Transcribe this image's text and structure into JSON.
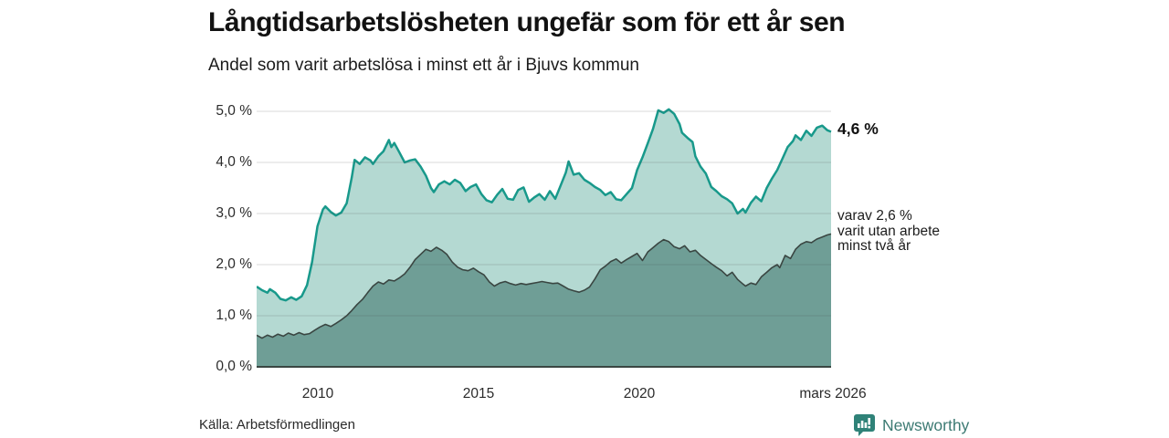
{
  "header": {
    "title": "Långtidsarbetslösheten ungefär som för ett år sen",
    "subtitle": "Andel som varit arbetslösa i minst ett år i Bjuvs kommun"
  },
  "chart_data": {
    "type": "area",
    "title": "Långtidsarbetslösheten ungefär som för ett år sen",
    "subtitle": "Andel som varit arbetslösa i minst ett år i Bjuvs kommun",
    "unit": "%",
    "x_domain": [
      2008.08,
      2026.2
    ],
    "ylim": [
      0,
      5
    ],
    "grid": true,
    "legend_position": "none",
    "y_ticks": [
      "5,0 %",
      "4,0 %",
      "3,0 %",
      "2,0 %",
      "1,0 %",
      "0,0 %"
    ],
    "y_tick_values": [
      5,
      4,
      3,
      2,
      1,
      0
    ],
    "x_tick_labels": [
      "2010",
      "2015",
      "2020",
      "mars 2026"
    ],
    "x_tick_values": [
      2010,
      2015,
      2020,
      2026.2
    ],
    "end_labels": {
      "primary": "4,6 %",
      "secondary_lines": [
        "varav 2,6 %",
        "varit utan arbete",
        "minst två år"
      ]
    },
    "series": [
      {
        "name": "Andel som varit arbetslösa minst ett år",
        "end_value": 4.6,
        "line_color": "#18998b",
        "fill_color": "#b4d9d2",
        "line_width": 2.5,
        "points": [
          [
            2008.08,
            1.57
          ],
          [
            2008.25,
            1.5
          ],
          [
            2008.42,
            1.45
          ],
          [
            2008.5,
            1.52
          ],
          [
            2008.67,
            1.45
          ],
          [
            2008.83,
            1.33
          ],
          [
            2009.0,
            1.3
          ],
          [
            2009.17,
            1.36
          ],
          [
            2009.33,
            1.31
          ],
          [
            2009.5,
            1.38
          ],
          [
            2009.67,
            1.6
          ],
          [
            2009.83,
            2.05
          ],
          [
            2010.0,
            2.75
          ],
          [
            2010.17,
            3.08
          ],
          [
            2010.25,
            3.14
          ],
          [
            2010.42,
            3.03
          ],
          [
            2010.58,
            2.96
          ],
          [
            2010.75,
            3.02
          ],
          [
            2010.92,
            3.2
          ],
          [
            2011.08,
            3.7
          ],
          [
            2011.17,
            4.05
          ],
          [
            2011.33,
            3.97
          ],
          [
            2011.5,
            4.1
          ],
          [
            2011.67,
            4.04
          ],
          [
            2011.75,
            3.97
          ],
          [
            2011.92,
            4.12
          ],
          [
            2012.08,
            4.22
          ],
          [
            2012.25,
            4.44
          ],
          [
            2012.33,
            4.3
          ],
          [
            2012.42,
            4.38
          ],
          [
            2012.58,
            4.2
          ],
          [
            2012.75,
            4.0
          ],
          [
            2012.92,
            4.04
          ],
          [
            2013.08,
            4.06
          ],
          [
            2013.25,
            3.92
          ],
          [
            2013.42,
            3.74
          ],
          [
            2013.58,
            3.5
          ],
          [
            2013.67,
            3.42
          ],
          [
            2013.83,
            3.57
          ],
          [
            2014.0,
            3.63
          ],
          [
            2014.17,
            3.57
          ],
          [
            2014.33,
            3.66
          ],
          [
            2014.5,
            3.6
          ],
          [
            2014.67,
            3.44
          ],
          [
            2014.83,
            3.52
          ],
          [
            2015.0,
            3.57
          ],
          [
            2015.17,
            3.38
          ],
          [
            2015.33,
            3.26
          ],
          [
            2015.5,
            3.22
          ],
          [
            2015.67,
            3.37
          ],
          [
            2015.83,
            3.48
          ],
          [
            2016.0,
            3.29
          ],
          [
            2016.17,
            3.27
          ],
          [
            2016.33,
            3.46
          ],
          [
            2016.5,
            3.51
          ],
          [
            2016.67,
            3.23
          ],
          [
            2016.83,
            3.31
          ],
          [
            2017.0,
            3.38
          ],
          [
            2017.17,
            3.27
          ],
          [
            2017.33,
            3.44
          ],
          [
            2017.5,
            3.29
          ],
          [
            2017.67,
            3.55
          ],
          [
            2017.83,
            3.8
          ],
          [
            2017.92,
            4.02
          ],
          [
            2018.08,
            3.76
          ],
          [
            2018.25,
            3.79
          ],
          [
            2018.42,
            3.66
          ],
          [
            2018.58,
            3.6
          ],
          [
            2018.75,
            3.52
          ],
          [
            2018.92,
            3.46
          ],
          [
            2019.08,
            3.36
          ],
          [
            2019.25,
            3.42
          ],
          [
            2019.42,
            3.28
          ],
          [
            2019.58,
            3.26
          ],
          [
            2019.75,
            3.38
          ],
          [
            2019.92,
            3.5
          ],
          [
            2020.08,
            3.85
          ],
          [
            2020.25,
            4.1
          ],
          [
            2020.42,
            4.38
          ],
          [
            2020.58,
            4.65
          ],
          [
            2020.75,
            5.02
          ],
          [
            2020.92,
            4.97
          ],
          [
            2021.08,
            5.04
          ],
          [
            2021.25,
            4.95
          ],
          [
            2021.42,
            4.75
          ],
          [
            2021.5,
            4.58
          ],
          [
            2021.67,
            4.48
          ],
          [
            2021.83,
            4.4
          ],
          [
            2021.92,
            4.12
          ],
          [
            2022.08,
            3.92
          ],
          [
            2022.25,
            3.78
          ],
          [
            2022.42,
            3.52
          ],
          [
            2022.58,
            3.44
          ],
          [
            2022.75,
            3.34
          ],
          [
            2022.92,
            3.28
          ],
          [
            2023.08,
            3.2
          ],
          [
            2023.25,
            3.0
          ],
          [
            2023.42,
            3.09
          ],
          [
            2023.5,
            3.02
          ],
          [
            2023.67,
            3.21
          ],
          [
            2023.83,
            3.33
          ],
          [
            2024.0,
            3.24
          ],
          [
            2024.17,
            3.5
          ],
          [
            2024.33,
            3.68
          ],
          [
            2024.5,
            3.85
          ],
          [
            2024.67,
            4.08
          ],
          [
            2024.83,
            4.3
          ],
          [
            2025.0,
            4.42
          ],
          [
            2025.08,
            4.53
          ],
          [
            2025.25,
            4.44
          ],
          [
            2025.42,
            4.62
          ],
          [
            2025.58,
            4.52
          ],
          [
            2025.75,
            4.68
          ],
          [
            2025.92,
            4.72
          ],
          [
            2026.08,
            4.63
          ],
          [
            2026.2,
            4.6
          ]
        ]
      },
      {
        "name": "varav utan arbete minst två år",
        "end_value": 2.6,
        "line_color": "#3a4642",
        "fill_color": "#6f9e96",
        "line_width": 1.6,
        "points": [
          [
            2008.08,
            0.62
          ],
          [
            2008.25,
            0.56
          ],
          [
            2008.42,
            0.62
          ],
          [
            2008.58,
            0.58
          ],
          [
            2008.75,
            0.64
          ],
          [
            2008.92,
            0.6
          ],
          [
            2009.08,
            0.66
          ],
          [
            2009.25,
            0.62
          ],
          [
            2009.42,
            0.67
          ],
          [
            2009.58,
            0.63
          ],
          [
            2009.75,
            0.65
          ],
          [
            2009.92,
            0.72
          ],
          [
            2010.08,
            0.78
          ],
          [
            2010.25,
            0.83
          ],
          [
            2010.42,
            0.79
          ],
          [
            2010.58,
            0.85
          ],
          [
            2010.75,
            0.92
          ],
          [
            2010.92,
            1.0
          ],
          [
            2011.08,
            1.1
          ],
          [
            2011.25,
            1.22
          ],
          [
            2011.42,
            1.32
          ],
          [
            2011.58,
            1.45
          ],
          [
            2011.75,
            1.58
          ],
          [
            2011.92,
            1.66
          ],
          [
            2012.08,
            1.62
          ],
          [
            2012.25,
            1.7
          ],
          [
            2012.42,
            1.68
          ],
          [
            2012.58,
            1.74
          ],
          [
            2012.75,
            1.82
          ],
          [
            2012.92,
            1.95
          ],
          [
            2013.08,
            2.1
          ],
          [
            2013.25,
            2.2
          ],
          [
            2013.42,
            2.3
          ],
          [
            2013.58,
            2.26
          ],
          [
            2013.75,
            2.34
          ],
          [
            2013.92,
            2.28
          ],
          [
            2014.08,
            2.2
          ],
          [
            2014.25,
            2.05
          ],
          [
            2014.42,
            1.95
          ],
          [
            2014.58,
            1.9
          ],
          [
            2014.75,
            1.88
          ],
          [
            2014.92,
            1.93
          ],
          [
            2015.08,
            1.86
          ],
          [
            2015.25,
            1.8
          ],
          [
            2015.42,
            1.66
          ],
          [
            2015.58,
            1.58
          ],
          [
            2015.75,
            1.64
          ],
          [
            2015.92,
            1.67
          ],
          [
            2016.08,
            1.63
          ],
          [
            2016.25,
            1.6
          ],
          [
            2016.42,
            1.63
          ],
          [
            2016.58,
            1.61
          ],
          [
            2016.75,
            1.63
          ],
          [
            2016.92,
            1.65
          ],
          [
            2017.08,
            1.67
          ],
          [
            2017.25,
            1.65
          ],
          [
            2017.42,
            1.63
          ],
          [
            2017.58,
            1.64
          ],
          [
            2017.75,
            1.58
          ],
          [
            2017.92,
            1.52
          ],
          [
            2018.08,
            1.49
          ],
          [
            2018.25,
            1.46
          ],
          [
            2018.42,
            1.5
          ],
          [
            2018.58,
            1.56
          ],
          [
            2018.75,
            1.72
          ],
          [
            2018.92,
            1.9
          ],
          [
            2019.08,
            1.97
          ],
          [
            2019.25,
            2.06
          ],
          [
            2019.42,
            2.11
          ],
          [
            2019.58,
            2.03
          ],
          [
            2019.75,
            2.1
          ],
          [
            2019.92,
            2.16
          ],
          [
            2020.08,
            2.22
          ],
          [
            2020.25,
            2.08
          ],
          [
            2020.42,
            2.25
          ],
          [
            2020.58,
            2.33
          ],
          [
            2020.75,
            2.42
          ],
          [
            2020.92,
            2.49
          ],
          [
            2021.08,
            2.45
          ],
          [
            2021.25,
            2.35
          ],
          [
            2021.42,
            2.31
          ],
          [
            2021.58,
            2.37
          ],
          [
            2021.75,
            2.25
          ],
          [
            2021.92,
            2.28
          ],
          [
            2022.08,
            2.18
          ],
          [
            2022.25,
            2.1
          ],
          [
            2022.42,
            2.02
          ],
          [
            2022.58,
            1.95
          ],
          [
            2022.75,
            1.88
          ],
          [
            2022.92,
            1.78
          ],
          [
            2023.08,
            1.85
          ],
          [
            2023.25,
            1.71
          ],
          [
            2023.42,
            1.62
          ],
          [
            2023.5,
            1.58
          ],
          [
            2023.67,
            1.64
          ],
          [
            2023.83,
            1.61
          ],
          [
            2024.0,
            1.76
          ],
          [
            2024.17,
            1.85
          ],
          [
            2024.33,
            1.94
          ],
          [
            2024.5,
            2.0
          ],
          [
            2024.58,
            1.94
          ],
          [
            2024.75,
            2.18
          ],
          [
            2024.92,
            2.12
          ],
          [
            2025.08,
            2.3
          ],
          [
            2025.25,
            2.4
          ],
          [
            2025.42,
            2.45
          ],
          [
            2025.58,
            2.43
          ],
          [
            2025.75,
            2.5
          ],
          [
            2025.92,
            2.54
          ],
          [
            2026.08,
            2.58
          ],
          [
            2026.2,
            2.6
          ]
        ]
      }
    ]
  },
  "colors": {
    "accent_teal": "#18998b",
    "fill_light": "#b4d9d2",
    "fill_dark": "#6f9e96",
    "line_dark": "#3a4642",
    "grid": "#d8d8d8",
    "brand": "#3c7a73"
  },
  "footer": {
    "source": "Källa: Arbetsförmedlingen",
    "brand": "Newsworthy"
  }
}
